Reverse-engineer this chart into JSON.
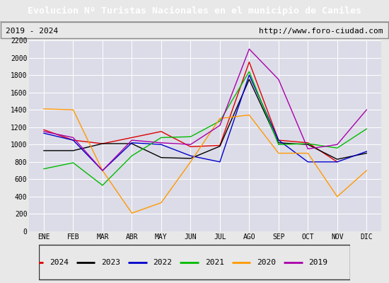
{
  "title": "Evolucion Nº Turistas Nacionales en el municipio de Caniles",
  "subtitle_left": "2019 - 2024",
  "subtitle_right": "http://www.foro-ciudad.com",
  "months": [
    "ENE",
    "FEB",
    "MAR",
    "ABR",
    "MAY",
    "JUN",
    "JUL",
    "AGO",
    "SEP",
    "OCT",
    "NOV",
    "DIC"
  ],
  "series": {
    "2024": [
      1170,
      1050,
      1010,
      1080,
      1150,
      975,
      990,
      1950,
      1050,
      1020,
      800,
      null
    ],
    "2023": [
      930,
      930,
      1010,
      1010,
      850,
      840,
      980,
      1750,
      1020,
      1000,
      830,
      900
    ],
    "2022": [
      1130,
      1050,
      700,
      1020,
      1000,
      870,
      800,
      1800,
      1050,
      800,
      800,
      920
    ],
    "2021": [
      720,
      790,
      530,
      870,
      1080,
      1090,
      1270,
      1840,
      1000,
      1010,
      960,
      1180
    ],
    "2020": [
      1410,
      1400,
      700,
      210,
      330,
      800,
      1300,
      1340,
      900,
      900,
      400,
      700
    ],
    "2019": [
      1150,
      1080,
      700,
      1050,
      1020,
      1000,
      1220,
      2100,
      1750,
      950,
      1000,
      1400
    ]
  },
  "colors": {
    "2024": "#dd0000",
    "2023": "#000000",
    "2022": "#0000cc",
    "2021": "#00bb00",
    "2020": "#ff9900",
    "2019": "#aa00aa"
  },
  "ylim": [
    0,
    2200
  ],
  "yticks": [
    0,
    200,
    400,
    600,
    800,
    1000,
    1200,
    1400,
    1600,
    1800,
    2000,
    2200
  ],
  "title_bg_color": "#5588cc",
  "title_text_color": "#ffffff",
  "header_bg_color": "#f0f0f0",
  "header_border_color": "#aaaaaa",
  "plot_bg_color": "#dcdce8",
  "fig_bg_color": "#e8e8e8",
  "grid_color": "#ffffff",
  "title_fontsize": 9.5,
  "header_fontsize": 8,
  "tick_fontsize": 7,
  "legend_fontsize": 8
}
